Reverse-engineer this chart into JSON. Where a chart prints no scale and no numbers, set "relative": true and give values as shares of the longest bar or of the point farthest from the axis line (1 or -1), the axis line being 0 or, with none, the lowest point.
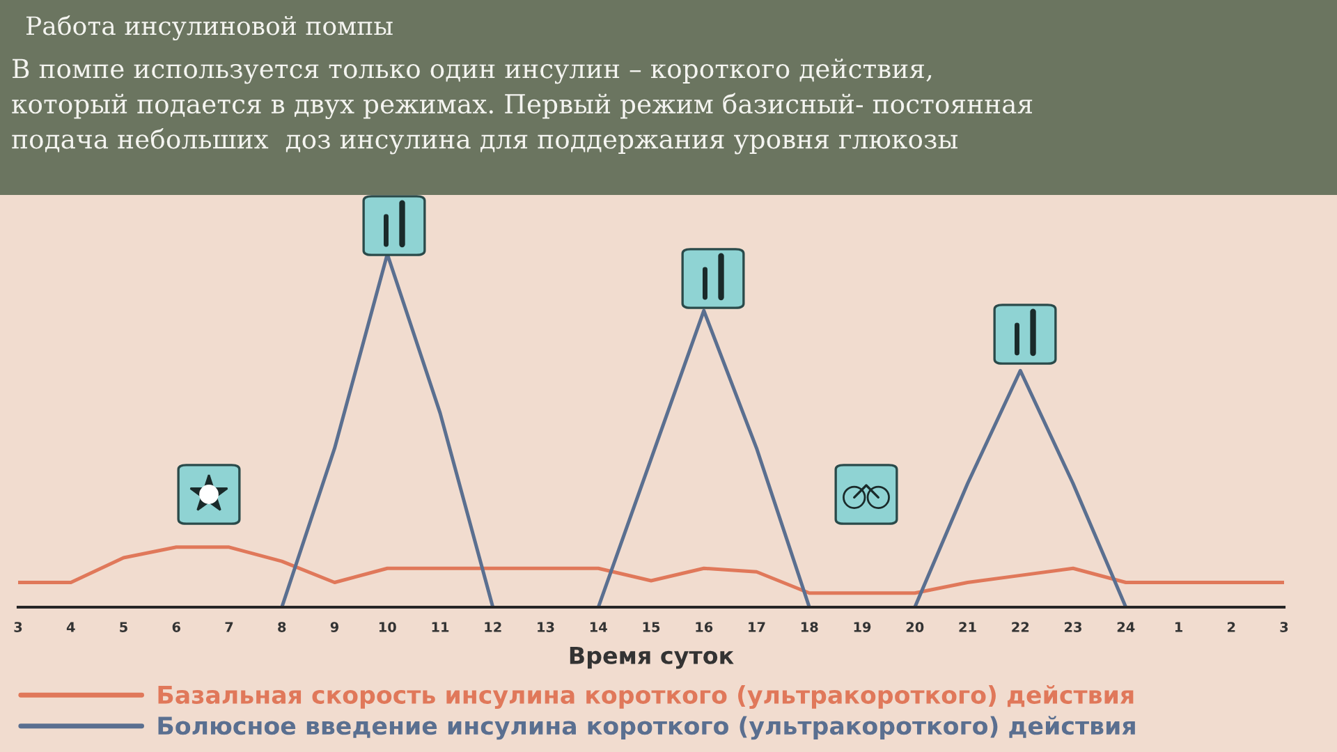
{
  "chart_data": {
    "type": "line",
    "title": "Работа инсулиновой помпы",
    "annotations": [
      "В помпе используется только один инсулин – короткого действия,\nкоторый подается в двух режимах. Первый режим базисный- постоянная\nподача небольших  доз инсулина для поддержания уровня глюкозы"
    ],
    "xlabel": "Время суток",
    "relative": true,
    "categories": [
      "3",
      "4",
      "5",
      "6",
      "7",
      "8",
      "9",
      "10",
      "11",
      "12",
      "13",
      "14",
      "15",
      "16",
      "17",
      "18",
      "19",
      "20",
      "21",
      "22",
      "23",
      "24",
      "1",
      "2",
      "3"
    ],
    "series": [
      {
        "name": "Базальная скорость инсулина короткого (ультракороткого) действия",
        "color": "#e0785a",
        "values": [
          0.07,
          0.07,
          0.14,
          0.17,
          0.17,
          0.13,
          0.07,
          0.11,
          0.11,
          0.11,
          0.11,
          0.11,
          0.075,
          0.11,
          0.1,
          0.04,
          0.04,
          0.04,
          0.07,
          0.09,
          0.11,
          0.07,
          0.07,
          0.07,
          0.07
        ]
      },
      {
        "name": "Болюсное введение инсулина короткого (ультракороткого) действия",
        "color": "#5a6f90",
        "values": [
          null,
          null,
          null,
          null,
          null,
          0,
          0.45,
          1,
          0.55,
          0,
          null,
          0,
          0.42,
          0.84,
          0.45,
          0,
          null,
          0,
          0.35,
          0.67,
          0.35,
          0,
          null,
          null,
          null
        ]
      }
    ],
    "legend": "bottom",
    "grid": false,
    "line_style": "solid",
    "marker": "none"
  }
}
